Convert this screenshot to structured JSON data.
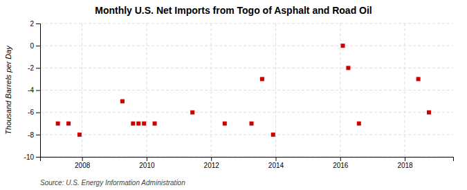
{
  "chart_data": {
    "type": "scatter",
    "title": "Monthly U.S. Net Imports from Togo of Asphalt and Road Oil",
    "ylabel": "Thousand Barrels per Day",
    "source": "Source: U.S. Energy Information Administration",
    "x": [
      2007.25,
      2007.58,
      2007.92,
      2009.25,
      2009.58,
      2009.75,
      2009.92,
      2010.25,
      2011.42,
      2012.42,
      2013.25,
      2013.58,
      2013.92,
      2016.08,
      2016.25,
      2016.58,
      2018.42,
      2018.75
    ],
    "values": [
      -7,
      -7,
      -8,
      -5,
      -7,
      -7,
      -7,
      -7,
      -6,
      -7,
      -7,
      -3,
      -8,
      0,
      -2,
      -7,
      -3,
      -6
    ],
    "color": "#cc0000",
    "marker": "square",
    "xlim": [
      2006.7,
      2019.5
    ],
    "xticks": [
      2008,
      2010,
      2012,
      2014,
      2016,
      2018
    ],
    "ylim": [
      -10,
      2
    ],
    "yticks": [
      -10,
      -8,
      -6,
      -4,
      -2,
      0,
      2
    ],
    "grid": true
  }
}
